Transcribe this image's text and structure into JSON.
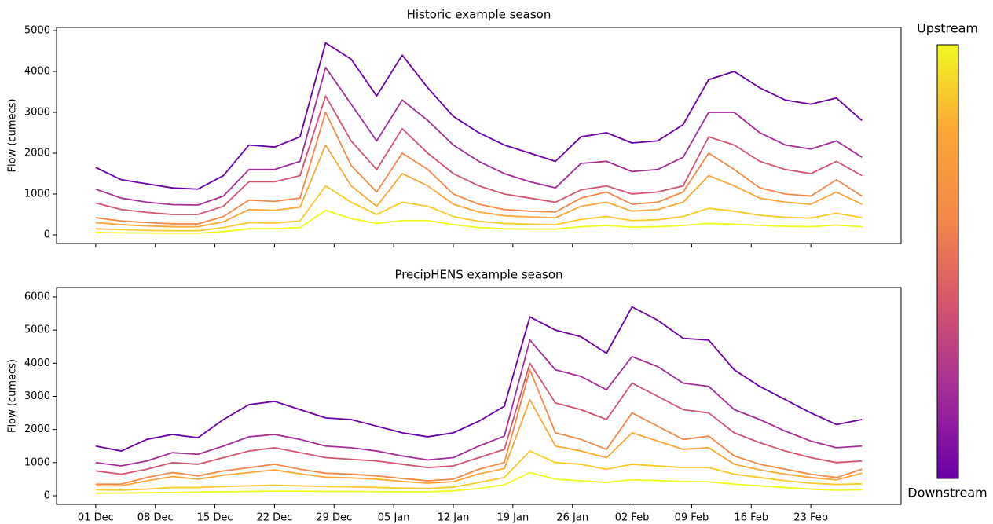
{
  "chart_data": [
    {
      "type": "line",
      "title": "Historic example season",
      "y_label": "Flow (cumecs)",
      "x": [
        0,
        3,
        6,
        9,
        12,
        15,
        18,
        21,
        24,
        27,
        30,
        33,
        36,
        39,
        42,
        45,
        48,
        51,
        54,
        57,
        60,
        63,
        66,
        69,
        72,
        75,
        78,
        81,
        84,
        87,
        90
      ],
      "xlim": [
        -4.6,
        94.6
      ],
      "xticks": [
        0,
        7,
        14,
        21,
        28,
        35,
        42,
        49,
        56,
        63,
        70,
        77,
        84
      ],
      "ylim": [
        -212,
        5077
      ],
      "yticks": [
        0,
        1000,
        2000,
        3000,
        4000,
        5000
      ],
      "series": [
        {
          "color": "#6a00a8",
          "values": [
            1650,
            1350,
            1250,
            1150,
            1120,
            1450,
            2200,
            2150,
            2400,
            4700,
            4300,
            3400,
            4400,
            3600,
            2900,
            2500,
            2200,
            2000,
            1800,
            2400,
            2500,
            2250,
            2300,
            2700,
            3800,
            4000,
            3600,
            3300,
            3200,
            3350,
            2800
          ]
        },
        {
          "color": "#a42d98",
          "values": [
            1120,
            900,
            800,
            740,
            730,
            950,
            1600,
            1600,
            1800,
            4100,
            3200,
            2300,
            3300,
            2800,
            2200,
            1800,
            1500,
            1300,
            1150,
            1750,
            1800,
            1550,
            1600,
            1900,
            3000,
            3000,
            2500,
            2200,
            2100,
            2300,
            1900
          ]
        },
        {
          "color": "#d5546e",
          "values": [
            780,
            620,
            550,
            500,
            500,
            700,
            1300,
            1300,
            1450,
            3400,
            2300,
            1600,
            2600,
            2000,
            1500,
            1200,
            1000,
            900,
            800,
            1100,
            1200,
            1000,
            1050,
            1200,
            2400,
            2200,
            1800,
            1600,
            1500,
            1800,
            1450
          ]
        },
        {
          "color": "#f48849",
          "values": [
            420,
            340,
            300,
            270,
            270,
            450,
            850,
            820,
            900,
            3000,
            1700,
            1050,
            2000,
            1600,
            1000,
            750,
            620,
            580,
            560,
            900,
            1050,
            750,
            800,
            1050,
            2000,
            1600,
            1150,
            1000,
            950,
            1350,
            950
          ]
        },
        {
          "color": "#fca636",
          "values": [
            300,
            250,
            220,
            200,
            200,
            320,
            620,
            600,
            680,
            2200,
            1200,
            700,
            1500,
            1200,
            750,
            560,
            470,
            440,
            420,
            700,
            800,
            580,
            620,
            800,
            1450,
            1200,
            900,
            800,
            750,
            1050,
            750
          ]
        },
        {
          "color": "#fbc92a",
          "values": [
            150,
            130,
            110,
            100,
            100,
            180,
            300,
            290,
            340,
            1200,
            800,
            500,
            800,
            700,
            450,
            330,
            280,
            260,
            250,
            380,
            450,
            350,
            370,
            450,
            650,
            580,
            480,
            430,
            410,
            530,
            420
          ]
        },
        {
          "color": "#f0f921",
          "values": [
            60,
            50,
            45,
            40,
            40,
            80,
            150,
            150,
            180,
            600,
            400,
            280,
            350,
            350,
            250,
            180,
            150,
            140,
            140,
            200,
            230,
            190,
            200,
            230,
            280,
            260,
            230,
            210,
            200,
            240,
            200
          ]
        }
      ]
    },
    {
      "type": "line",
      "title": "PrecipHENS example season",
      "y_label": "Flow (cumecs)",
      "x": [
        0,
        3,
        6,
        9,
        12,
        15,
        18,
        21,
        24,
        27,
        30,
        33,
        36,
        39,
        42,
        45,
        48,
        51,
        54,
        57,
        60,
        63,
        66,
        69,
        72,
        75,
        78,
        81,
        84,
        87,
        90
      ],
      "xlim": [
        -4.6,
        94.6
      ],
      "xticks": [
        {
          "value": 0,
          "label": "01 Dec"
        },
        {
          "value": 7,
          "label": "08 Dec"
        },
        {
          "value": 14,
          "label": "15 Dec"
        },
        {
          "value": 21,
          "label": "22 Dec"
        },
        {
          "value": 28,
          "label": "29 Dec"
        },
        {
          "value": 35,
          "label": "05 Jan"
        },
        {
          "value": 42,
          "label": "12 Jan"
        },
        {
          "value": 49,
          "label": "19 Jan"
        },
        {
          "value": 56,
          "label": "26 Jan"
        },
        {
          "value": 63,
          "label": "02 Feb"
        },
        {
          "value": 70,
          "label": "09 Feb"
        },
        {
          "value": 77,
          "label": "16 Feb"
        },
        {
          "value": 84,
          "label": "23 Feb"
        }
      ],
      "ylim": [
        -261,
        6284
      ],
      "yticks": [
        0,
        1000,
        2000,
        3000,
        4000,
        5000,
        6000
      ],
      "series": [
        {
          "color": "#6a00a8",
          "values": [
            1500,
            1350,
            1700,
            1850,
            1750,
            2300,
            2750,
            2850,
            2600,
            2350,
            2300,
            2100,
            1900,
            1780,
            1900,
            2250,
            2700,
            5400,
            5000,
            4800,
            4300,
            5700,
            5300,
            4750,
            4700,
            3800,
            3300,
            2900,
            2500,
            2150,
            2300
          ]
        },
        {
          "color": "#a42d98",
          "values": [
            1000,
            900,
            1050,
            1300,
            1250,
            1500,
            1780,
            1850,
            1700,
            1500,
            1450,
            1350,
            1200,
            1080,
            1150,
            1500,
            1800,
            4700,
            3800,
            3600,
            3200,
            4200,
            3900,
            3400,
            3300,
            2600,
            2300,
            1950,
            1650,
            1450,
            1500
          ]
        },
        {
          "color": "#d5546e",
          "values": [
            750,
            650,
            800,
            1000,
            950,
            1150,
            1350,
            1450,
            1300,
            1150,
            1100,
            1050,
            950,
            850,
            900,
            1150,
            1400,
            4000,
            2800,
            2600,
            2300,
            3400,
            3000,
            2600,
            2500,
            1900,
            1600,
            1350,
            1150,
            1000,
            1050
          ]
        },
        {
          "color": "#f48849",
          "values": [
            350,
            350,
            550,
            700,
            600,
            750,
            850,
            950,
            800,
            680,
            650,
            600,
            520,
            450,
            500,
            800,
            1000,
            3800,
            1900,
            1700,
            1400,
            2500,
            2100,
            1700,
            1800,
            1200,
            950,
            800,
            650,
            550,
            800
          ]
        },
        {
          "color": "#fca636",
          "values": [
            300,
            300,
            450,
            580,
            500,
            620,
            700,
            780,
            660,
            560,
            540,
            500,
            430,
            380,
            420,
            660,
            820,
            2900,
            1500,
            1350,
            1150,
            1900,
            1650,
            1400,
            1450,
            950,
            780,
            650,
            550,
            480,
            680
          ]
        },
        {
          "color": "#fbc92a",
          "values": [
            180,
            170,
            200,
            250,
            250,
            280,
            300,
            320,
            300,
            280,
            270,
            250,
            230,
            220,
            260,
            400,
            550,
            1350,
            1000,
            950,
            800,
            950,
            900,
            850,
            850,
            650,
            550,
            450,
            380,
            340,
            360
          ]
        },
        {
          "color": "#f0f921",
          "values": [
            80,
            80,
            90,
            100,
            110,
            120,
            130,
            140,
            140,
            130,
            130,
            125,
            120,
            120,
            150,
            220,
            330,
            700,
            500,
            450,
            400,
            480,
            460,
            430,
            420,
            350,
            300,
            250,
            200,
            170,
            180
          ]
        }
      ]
    }
  ],
  "colorbar": {
    "top_label": "Upstream",
    "bottom_label": "Downstream",
    "colors": [
      "#6a00a8",
      "#a42d98",
      "#d5546e",
      "#f48849",
      "#fca636",
      "#f0f921"
    ]
  }
}
